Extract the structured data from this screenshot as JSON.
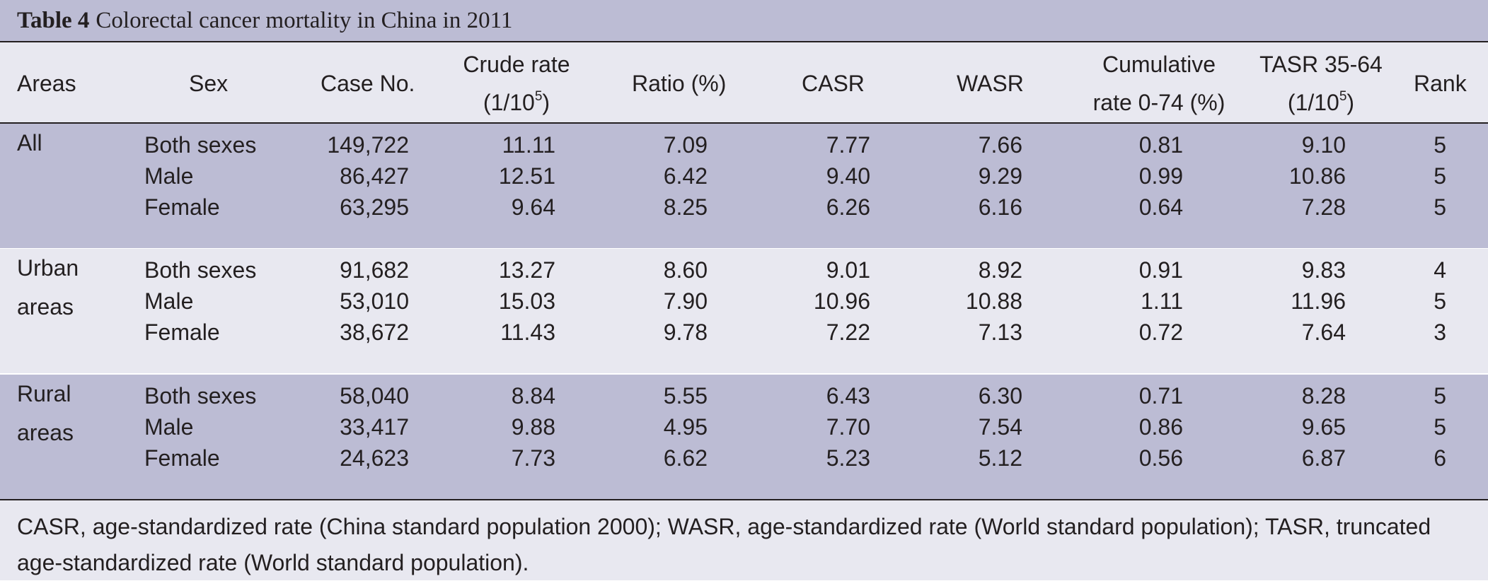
{
  "table": {
    "label": "Table 4",
    "caption": "Colorectal cancer mortality in China in 2011",
    "headers": {
      "areas": "Areas",
      "sex": "Sex",
      "case_no": "Case No.",
      "crude_rate_line1": "Crude rate",
      "crude_rate_line2": "(1/10",
      "crude_rate_sup": "5",
      "crude_rate_close": ")",
      "ratio": "Ratio (%)",
      "casr": "CASR",
      "wasr": "WASR",
      "cumulative_line1": "Cumulative",
      "cumulative_line2": "rate 0-74 (%)",
      "tasr_line1": "TASR 35-64",
      "tasr_line2": "(1/10",
      "tasr_sup": "5",
      "tasr_close": ")",
      "rank": "Rank"
    },
    "groups": [
      {
        "area": "All",
        "rows": [
          {
            "sex": "Both sexes",
            "case_no": "149,722",
            "crude": "11.11",
            "ratio": "7.09",
            "casr": "7.77",
            "wasr": "7.66",
            "cumulative": "0.81",
            "tasr": "9.10",
            "rank": "5"
          },
          {
            "sex": "Male",
            "case_no": "86,427",
            "crude": "12.51",
            "ratio": "6.42",
            "casr": "9.40",
            "wasr": "9.29",
            "cumulative": "0.99",
            "tasr": "10.86",
            "rank": "5"
          },
          {
            "sex": "Female",
            "case_no": "63,295",
            "crude": "9.64",
            "ratio": "8.25",
            "casr": "6.26",
            "wasr": "6.16",
            "cumulative": "0.64",
            "tasr": "7.28",
            "rank": "5"
          }
        ]
      },
      {
        "area": "Urban areas",
        "rows": [
          {
            "sex": "Both sexes",
            "case_no": "91,682",
            "crude": "13.27",
            "ratio": "8.60",
            "casr": "9.01",
            "wasr": "8.92",
            "cumulative": "0.91",
            "tasr": "9.83",
            "rank": "4"
          },
          {
            "sex": "Male",
            "case_no": "53,010",
            "crude": "15.03",
            "ratio": "7.90",
            "casr": "10.96",
            "wasr": "10.88",
            "cumulative": "1.11",
            "tasr": "11.96",
            "rank": "5"
          },
          {
            "sex": "Female",
            "case_no": "38,672",
            "crude": "11.43",
            "ratio": "9.78",
            "casr": "7.22",
            "wasr": "7.13",
            "cumulative": "0.72",
            "tasr": "7.64",
            "rank": "3"
          }
        ]
      },
      {
        "area": "Rural areas",
        "rows": [
          {
            "sex": "Both sexes",
            "case_no": "58,040",
            "crude": "8.84",
            "ratio": "5.55",
            "casr": "6.43",
            "wasr": "6.30",
            "cumulative": "0.71",
            "tasr": "8.28",
            "rank": "5"
          },
          {
            "sex": "Male",
            "case_no": "33,417",
            "crude": "9.88",
            "ratio": "4.95",
            "casr": "7.70",
            "wasr": "7.54",
            "cumulative": "0.86",
            "tasr": "9.65",
            "rank": "5"
          },
          {
            "sex": "Female",
            "case_no": "24,623",
            "crude": "7.73",
            "ratio": "6.62",
            "casr": "5.23",
            "wasr": "5.12",
            "cumulative": "0.56",
            "tasr": "6.87",
            "rank": "6"
          }
        ]
      }
    ],
    "footnote": "CASR, age-standardized rate (China standard population 2000); WASR, age-standardized rate (World standard population); TASR, truncated age-standardized rate (World standard population).",
    "colors": {
      "shaded_row": "#bcbcd4",
      "light_row": "#e8e8f0",
      "text": "#231f20"
    }
  }
}
